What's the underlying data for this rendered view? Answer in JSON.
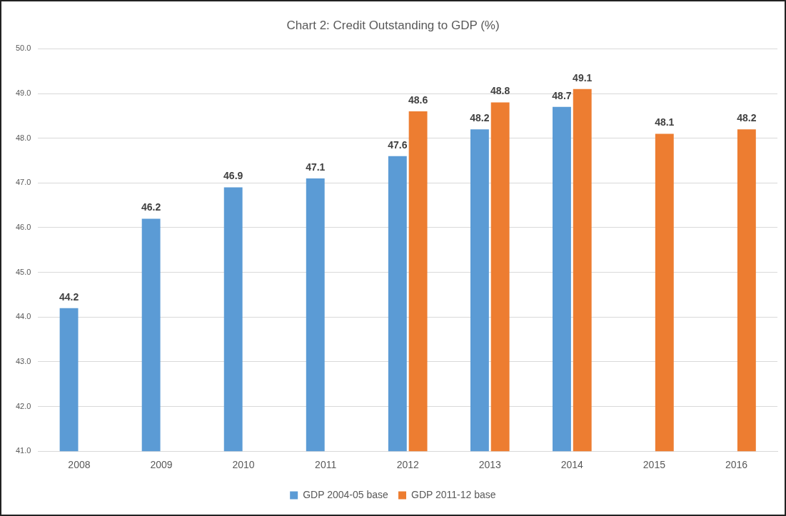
{
  "chart_data": {
    "type": "bar",
    "title": "Chart 2: Credit Outstanding to GDP (%)",
    "categories": [
      "2008",
      "2009",
      "2010",
      "2011",
      "2012",
      "2013",
      "2014",
      "2015",
      "2016"
    ],
    "series": [
      {
        "name": "GDP 2004-05 base",
        "color": "#5b9bd5",
        "values": [
          44.2,
          46.2,
          46.9,
          47.1,
          47.6,
          48.2,
          48.7,
          null,
          null
        ]
      },
      {
        "name": "GDP 2011-12 base",
        "color": "#ed7d31",
        "values": [
          null,
          null,
          null,
          null,
          48.6,
          48.8,
          49.1,
          48.1,
          48.2
        ]
      }
    ],
    "ylim": [
      41,
      50
    ],
    "yticks": [
      {
        "value": 41,
        "label": "41.0"
      },
      {
        "value": 42,
        "label": "42.0"
      },
      {
        "value": 43,
        "label": "43.0"
      },
      {
        "value": 44,
        "label": "44.0"
      },
      {
        "value": 45,
        "label": "45.0"
      },
      {
        "value": 46,
        "label": "46.0"
      },
      {
        "value": 47,
        "label": "47.0"
      },
      {
        "value": 48,
        "label": "48.0"
      },
      {
        "value": 49,
        "label": "49.0"
      },
      {
        "value": 50,
        "label": "50.0"
      }
    ],
    "grid": "y",
    "legend": "bottom",
    "data_labels": true
  }
}
